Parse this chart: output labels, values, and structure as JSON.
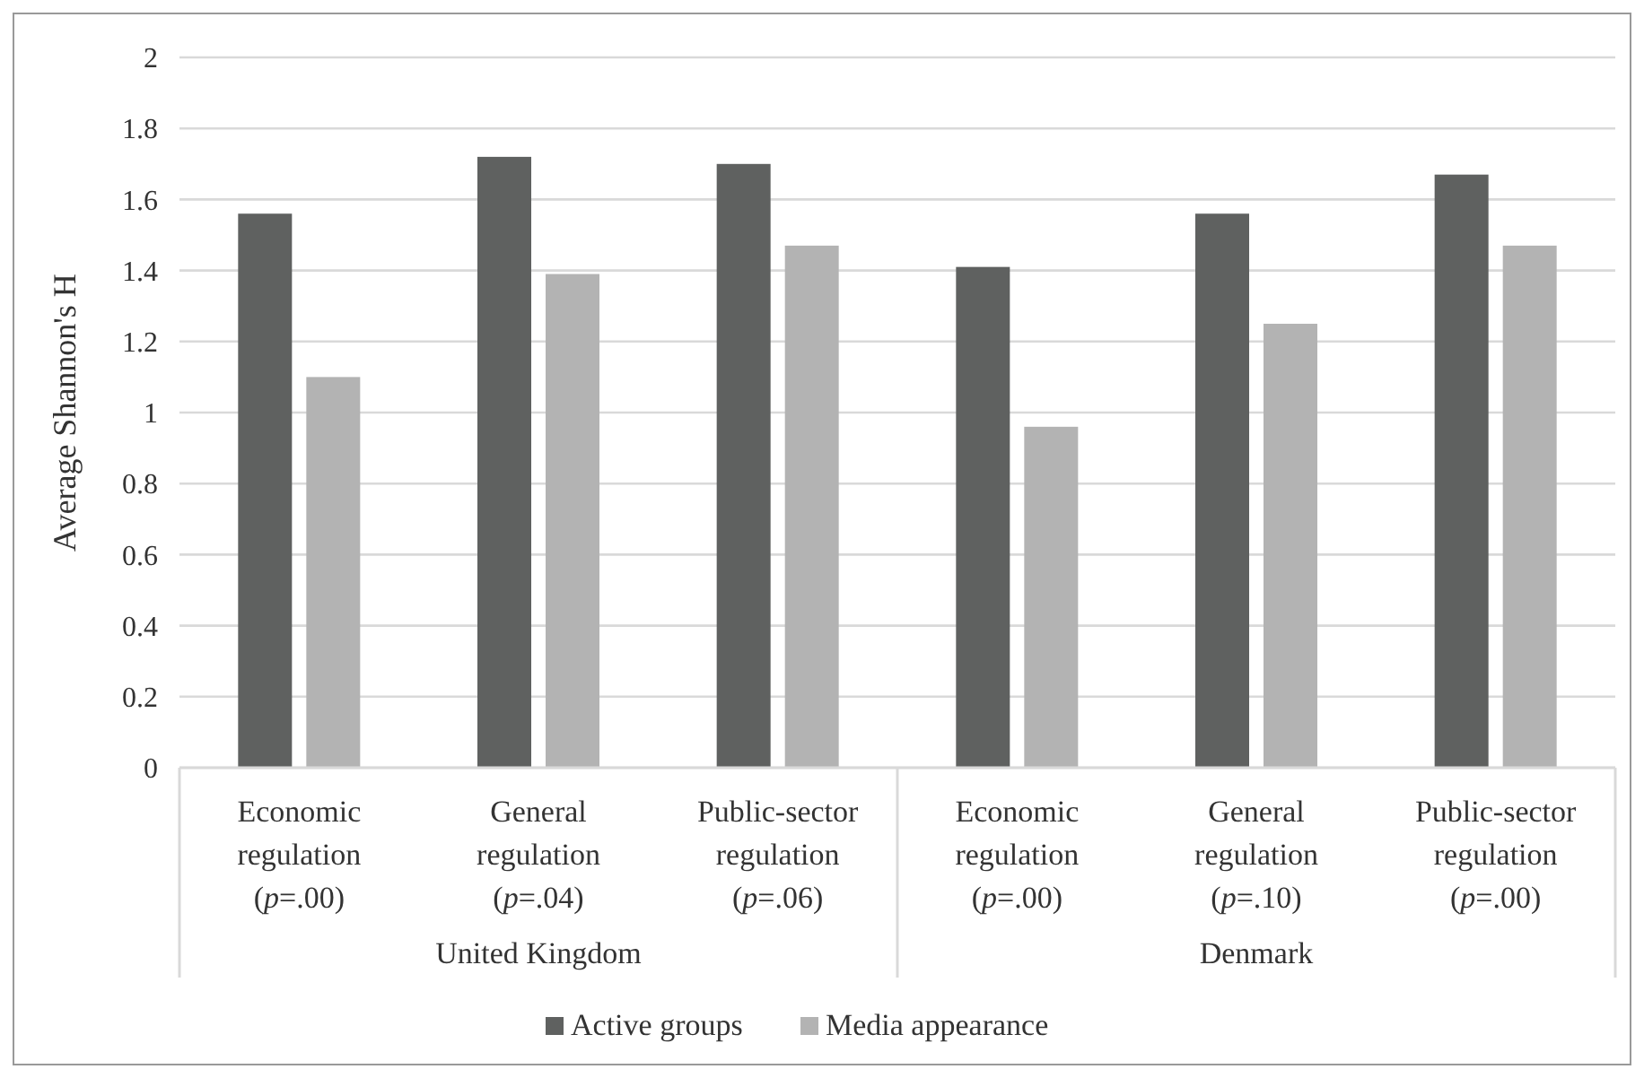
{
  "chart_data": {
    "type": "bar",
    "ylabel": "Average Shannon's H",
    "categories": [
      "Economic regulation (p=.00)",
      "General regulation (p=.04)",
      "Public-sector regulation (p=.06)",
      "Economic regulation (p=.00)",
      "General regulation (p=.10)",
      "Public-sector regulation (p=.00)"
    ],
    "series": [
      {
        "name": "Active groups",
        "color": "#5f6160",
        "values": [
          1.56,
          1.72,
          1.7,
          1.41,
          1.56,
          1.67
        ]
      },
      {
        "name": "Media appearance",
        "color": "#b3b3b3",
        "values": [
          1.1,
          1.39,
          1.47,
          0.96,
          1.25,
          1.47
        ]
      }
    ],
    "annotations": [
      "United Kingdom",
      "Denmark"
    ],
    "ylim": [
      0,
      2
    ],
    "yticks": [
      0,
      0.2,
      0.4,
      0.6,
      0.8,
      1,
      1.2,
      1.4,
      1.6,
      1.8,
      2
    ],
    "grid": "y",
    "legend": "bottom"
  }
}
